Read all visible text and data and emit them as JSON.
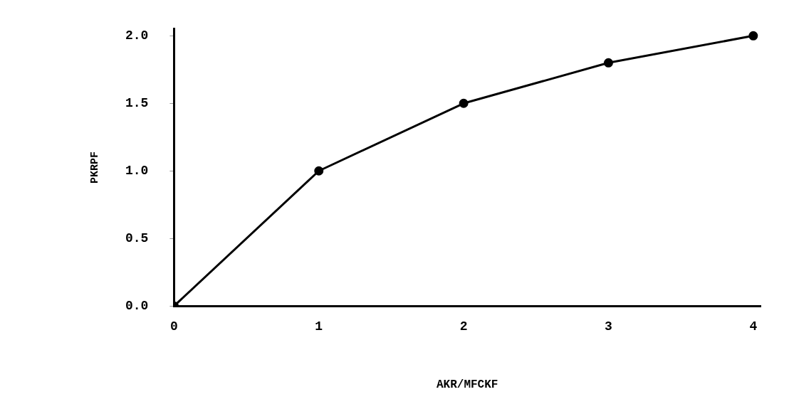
{
  "chart_data": {
    "type": "line",
    "xlabel": "AKR/MFCKF",
    "ylabel": "PKRPF",
    "x": [
      0,
      1,
      2,
      3,
      4
    ],
    "series": [
      {
        "color": "#000000",
        "values": [
          0,
          1.0,
          1.5,
          1.8,
          2.0
        ]
      }
    ],
    "xlim": [
      0,
      4.05
    ],
    "ylim": [
      0,
      2.05
    ],
    "xticks": [
      0,
      1,
      2,
      3,
      4
    ],
    "yticks": [
      {
        "value": 0,
        "label": "0.0"
      },
      {
        "value": 0.5,
        "label": "0.5"
      },
      {
        "value": 1,
        "label": "1.0"
      },
      {
        "value": 1.5,
        "label": "1.5"
      },
      {
        "value": 2,
        "label": "2.0"
      }
    ],
    "grid": false,
    "legend": false,
    "marker": "circle",
    "line_style": "solid"
  }
}
